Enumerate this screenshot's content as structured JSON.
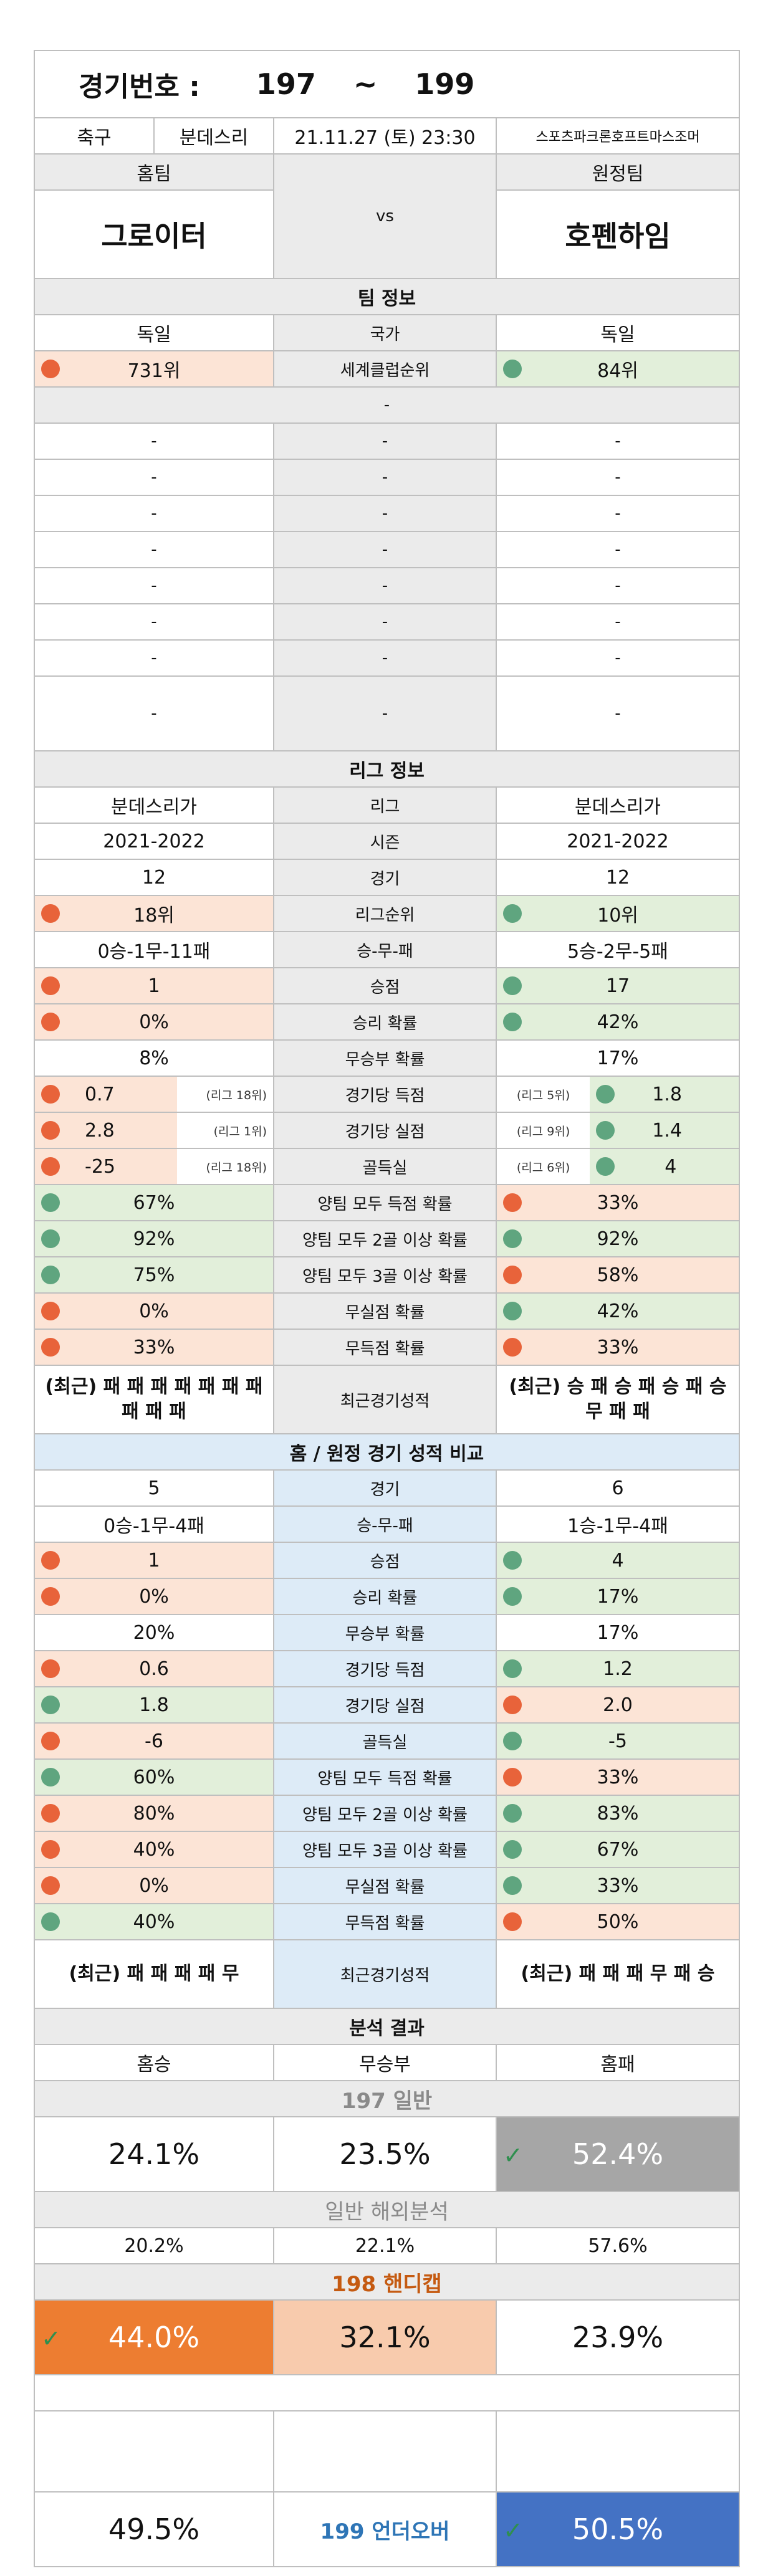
{
  "header": {
    "match_label": "경기번호 :",
    "match_from": "197",
    "match_sep": "~",
    "match_to": "199",
    "sport": "축구",
    "league": "분데스리",
    "datetime": "21.11.27 (토) 23:30",
    "venue": "스포츠파크론호프트마스조머",
    "home_label": "홈팀",
    "away_label": "원정팀",
    "home_team": "그로이터",
    "vs": "vs",
    "away_team": "호펜하임"
  },
  "team_info": {
    "title": "팀 정보",
    "country_label": "국가",
    "home_country": "독일",
    "away_country": "독일",
    "rank_label": "세계클럽순위",
    "home_rank": "731위",
    "away_rank": "84위",
    "dash": "-"
  },
  "league_info": {
    "title": "리그 정보",
    "rows": {
      "league": {
        "label": "리그",
        "home": "분데스리가",
        "away": "분데스리가"
      },
      "season": {
        "label": "시즌",
        "home": "2021-2022",
        "away": "2021-2022"
      },
      "games": {
        "label": "경기",
        "home": "12",
        "away": "12"
      },
      "rank": {
        "label": "리그순위",
        "home": "18위",
        "away": "10위"
      },
      "wdl": {
        "label": "승-무-패",
        "home": "0승-1무-11패",
        "away": "5승-2무-5패"
      },
      "points": {
        "label": "승점",
        "home": "1",
        "away": "17"
      },
      "win_rate": {
        "label": "승리 확률",
        "home": "0%",
        "away": "42%"
      },
      "draw_rate": {
        "label": "무승부 확률",
        "home": "8%",
        "away": "17%"
      },
      "gf": {
        "label": "경기당 득점",
        "home": "0.7",
        "home_note": "(리그 18위)",
        "away": "1.8",
        "away_note": "(리그 5위)"
      },
      "ga": {
        "label": "경기당 실점",
        "home": "2.8",
        "home_note": "(리그 1위)",
        "away": "1.4",
        "away_note": "(리그 9위)"
      },
      "gd": {
        "label": "골득실",
        "home": "-25",
        "home_note": "(리그 18위)",
        "away": "4",
        "away_note": "(리그 6위)"
      },
      "btts": {
        "label": "양팀 모두 득점 확률",
        "home": "67%",
        "away": "33%"
      },
      "btts2": {
        "label": "양팀 모두 2골 이상 확률",
        "home": "92%",
        "away": "92%"
      },
      "btts3": {
        "label": "양팀 모두 3골 이상 확률",
        "home": "75%",
        "away": "58%"
      },
      "clean": {
        "label": "무실점 확률",
        "home": "0%",
        "away": "42%"
      },
      "noscore": {
        "label": "무득점 확률",
        "home": "33%",
        "away": "33%"
      },
      "recent": {
        "label": "최근경기성적",
        "home": "(최근) 패 패 패 패 패 패 패 패 패 패",
        "away": "(최근) 승 패 승 패 승 패 승 무 패 패"
      }
    }
  },
  "ha_compare": {
    "title": "홈 / 원정 경기 성적 비교",
    "rows": {
      "games": {
        "label": "경기",
        "home": "5",
        "away": "6"
      },
      "wdl": {
        "label": "승-무-패",
        "home": "0승-1무-4패",
        "away": "1승-1무-4패"
      },
      "points": {
        "label": "승점",
        "home": "1",
        "away": "4"
      },
      "win_rate": {
        "label": "승리 확률",
        "home": "0%",
        "away": "17%"
      },
      "draw_rate": {
        "label": "무승부 확률",
        "home": "20%",
        "away": "17%"
      },
      "gf": {
        "label": "경기당 득점",
        "home": "0.6",
        "away": "1.2"
      },
      "ga": {
        "label": "경기당 실점",
        "home": "1.8",
        "away": "2.0"
      },
      "gd": {
        "label": "골득실",
        "home": "-6",
        "away": "-5"
      },
      "btts": {
        "label": "양팀 모두 득점 확률",
        "home": "60%",
        "away": "33%"
      },
      "btts2": {
        "label": "양팀 모두 2골 이상 확률",
        "home": "80%",
        "away": "83%"
      },
      "btts3": {
        "label": "양팀 모두 3골 이상 확률",
        "home": "40%",
        "away": "67%"
      },
      "clean": {
        "label": "무실점 확률",
        "home": "0%",
        "away": "33%"
      },
      "noscore": {
        "label": "무득점 확률",
        "home": "40%",
        "away": "50%"
      },
      "recent": {
        "label": "최근경기성적",
        "home": "(최근) 패 패 패 패 무",
        "away": "(최근) 패 패 패 무 패 승"
      }
    }
  },
  "analysis": {
    "title": "분석 결과",
    "home_win": "홈승",
    "draw": "무승부",
    "home_loss": "홈패",
    "general_title": "197 일반",
    "general": {
      "home": "24.1%",
      "draw": "23.5%",
      "away": "52.4%"
    },
    "overseas_title": "일반 해외분석",
    "overseas": {
      "home": "20.2%",
      "draw": "22.1%",
      "away": "57.6%"
    },
    "handicap_title": "198 핸디캡",
    "handicap": {
      "home": "44.0%",
      "draw": "32.1%",
      "away": "23.9%"
    },
    "uo_title": "199 언더오버",
    "uo": {
      "under": "49.5%",
      "over": "50.5%"
    },
    "check": "✓"
  },
  "colors": {
    "red_dot": "#e8633a",
    "green_dot": "#5fa57f",
    "orange": "#ed7d31",
    "navy": "#4472c4",
    "gray": "#a6a6a6"
  }
}
